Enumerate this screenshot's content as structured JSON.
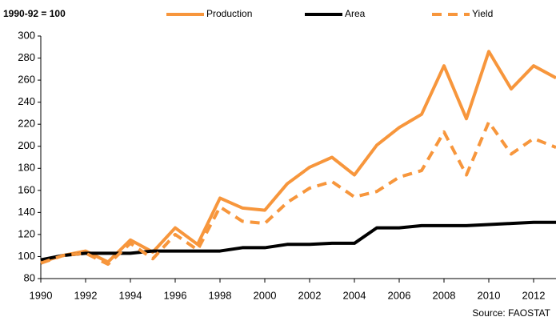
{
  "chart_data": {
    "type": "line",
    "subtitle": "1990-92 = 100",
    "source": "Source: FAOSTAT",
    "x": [
      1990,
      1991,
      1992,
      1993,
      1994,
      1995,
      1996,
      1997,
      1998,
      1999,
      2000,
      2001,
      2002,
      2003,
      2004,
      2005,
      2006,
      2007,
      2008,
      2009,
      2010,
      2011,
      2012,
      2013
    ],
    "series": [
      {
        "name": "Production",
        "color": "#f7963c",
        "dash": false,
        "values": [
          95,
          101,
          105,
          95,
          115,
          104,
          126,
          111,
          153,
          144,
          142,
          166,
          181,
          190,
          174,
          201,
          217,
          229,
          273,
          225,
          286,
          252,
          273,
          262
        ]
      },
      {
        "name": "Area",
        "color": "#000000",
        "dash": false,
        "values": [
          97,
          101,
          103,
          103,
          103,
          105,
          105,
          105,
          105,
          108,
          108,
          111,
          111,
          112,
          112,
          126,
          126,
          128,
          128,
          128,
          129,
          130,
          131,
          131
        ]
      },
      {
        "name": "Yield",
        "color": "#f7963c",
        "dash": true,
        "values": [
          94,
          101,
          103,
          93,
          112,
          98,
          120,
          106,
          145,
          132,
          130,
          149,
          162,
          168,
          154,
          159,
          172,
          178,
          213,
          174,
          222,
          193,
          207,
          199
        ]
      }
    ],
    "xlim": [
      1990,
      2013
    ],
    "xticks": [
      1990,
      1992,
      1994,
      1996,
      1998,
      2000,
      2002,
      2004,
      2006,
      2008,
      2010,
      2012
    ],
    "ylim": [
      80,
      300
    ],
    "yticks": [
      80,
      100,
      120,
      140,
      160,
      180,
      200,
      220,
      240,
      260,
      280,
      300
    ],
    "grid": false
  }
}
